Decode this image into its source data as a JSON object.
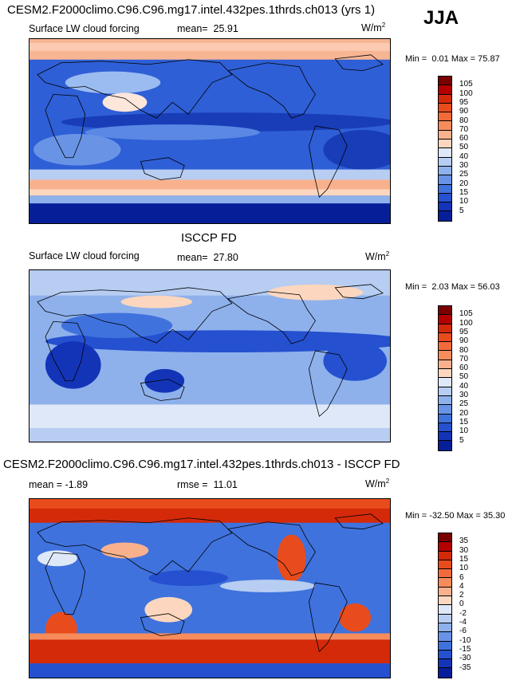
{
  "season": "JJA",
  "panels": [
    {
      "title": "CESM2.F2000climo.C96.C96.mg17.intel.432pes.1thrds.ch013 (yrs 1)",
      "variable": "Surface LW cloud forcing",
      "stat_label": "mean=",
      "stat_value": "25.91",
      "units": "W/m",
      "units_sup": "2",
      "min_label": "Min =",
      "min_value": "0.01",
      "max_label": "Max =",
      "max_value": "75.87"
    },
    {
      "title": "ISCCP FD",
      "variable": "Surface LW cloud forcing",
      "stat_label": "mean=",
      "stat_value": "27.80",
      "units": "W/m",
      "units_sup": "2",
      "min_label": "Min =",
      "min_value": "2.03",
      "max_label": "Max =",
      "max_value": "56.03"
    },
    {
      "title": "CESM2.F2000climo.C96.C96.mg17.intel.432pes.1thrds.ch013 - ISCCP FD",
      "variable": "",
      "stat_label": "mean =",
      "stat_value": "-1.89",
      "stat2_label": "rmse =",
      "stat2_value": "11.01",
      "units": "W/m",
      "units_sup": "2",
      "min_label": "Min =",
      "min_value": "-32.50",
      "max_label": "Max =",
      "max_value": "35.30"
    }
  ],
  "chart_data": [
    {
      "type": "heatmap",
      "title": "CESM2.F2000climo.C96.C96.mg17.intel.432pes.1thrds.ch013 (yrs 1)",
      "variable": "Surface LW cloud forcing",
      "units": "W/m2",
      "mean": 25.91,
      "min": 0.01,
      "max": 75.87,
      "colorbar_levels": [
        105,
        100,
        95,
        90,
        80,
        70,
        60,
        50,
        40,
        30,
        25,
        20,
        15,
        10,
        5
      ],
      "colorbar_colors": [
        "#7a0000",
        "#b40000",
        "#d42a0a",
        "#e94c1c",
        "#f26a3a",
        "#f68c5c",
        "#f9b18d",
        "#fcd6be",
        "#dfe8f8",
        "#b7cdf2",
        "#8eb1ec",
        "#6893e6",
        "#3f72dd",
        "#2550cf",
        "#1434b8",
        "#061f99"
      ]
    },
    {
      "type": "heatmap",
      "title": "ISCCP FD",
      "variable": "Surface LW cloud forcing",
      "units": "W/m2",
      "mean": 27.8,
      "min": 2.03,
      "max": 56.03,
      "colorbar_levels": [
        105,
        100,
        95,
        90,
        80,
        70,
        60,
        50,
        40,
        30,
        25,
        20,
        15,
        10,
        5
      ],
      "colorbar_colors": [
        "#7a0000",
        "#b40000",
        "#d42a0a",
        "#e94c1c",
        "#f26a3a",
        "#f68c5c",
        "#f9b18d",
        "#fcd6be",
        "#dfe8f8",
        "#b7cdf2",
        "#8eb1ec",
        "#6893e6",
        "#3f72dd",
        "#2550cf",
        "#1434b8",
        "#061f99"
      ]
    },
    {
      "type": "heatmap",
      "title": "CESM2.F2000climo.C96.C96.mg17.intel.432pes.1thrds.ch013 - ISCCP FD",
      "units": "W/m2",
      "mean": -1.89,
      "rmse": 11.01,
      "min": -32.5,
      "max": 35.3,
      "colorbar_levels": [
        35,
        30,
        15,
        10,
        6,
        4,
        2,
        0,
        -2,
        -4,
        -6,
        -10,
        -15,
        -30,
        -35
      ],
      "colorbar_colors": [
        "#7a0000",
        "#b40000",
        "#d42a0a",
        "#e94c1c",
        "#f26a3a",
        "#f68c5c",
        "#f9b18d",
        "#fcd6be",
        "#dfe8f8",
        "#b7cdf2",
        "#8eb1ec",
        "#6893e6",
        "#3f72dd",
        "#2550cf",
        "#1434b8",
        "#061f99"
      ]
    }
  ]
}
